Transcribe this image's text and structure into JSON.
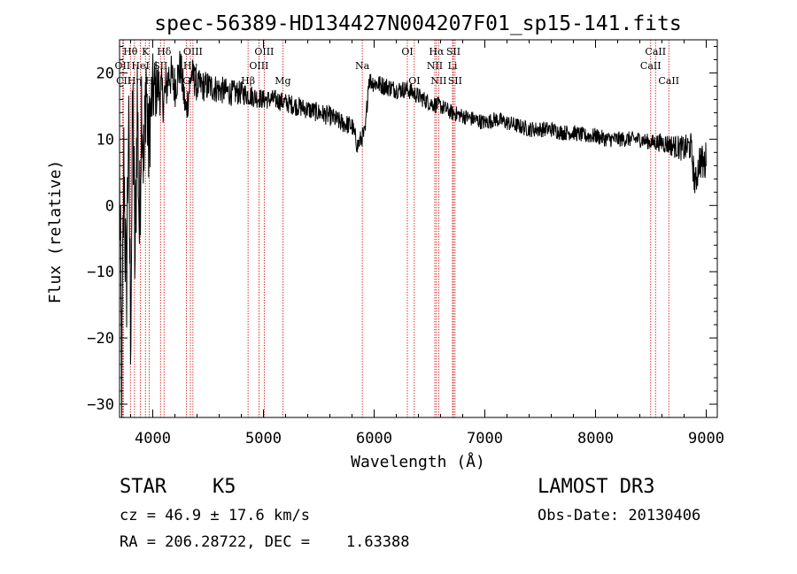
{
  "chart_data": {
    "type": "line",
    "title": "spec-56389-HD134427N004207F01_sp15-141.fits",
    "xlabel": "Wavelength (Å)",
    "ylabel": "Flux (relative)",
    "xlim": [
      3700,
      9100
    ],
    "ylim": [
      -32,
      25
    ],
    "x_ticks": [
      4000,
      5000,
      6000,
      7000,
      8000,
      9000
    ],
    "x_tick_labels": [
      "4000",
      "5000",
      "6000",
      "7000",
      "8000",
      "9000"
    ],
    "y_ticks": [
      -30,
      -20,
      -10,
      0,
      10,
      20
    ],
    "y_tick_labels": [
      "−30",
      "−20",
      "−10",
      "0",
      "10",
      "20"
    ],
    "grid": false,
    "line_color": "#000000",
    "marker_color": "#cc0000",
    "spectrum_anchors": [
      [
        3700,
        5
      ],
      [
        3720,
        -30
      ],
      [
        3740,
        8
      ],
      [
        3760,
        -15
      ],
      [
        3780,
        12
      ],
      [
        3800,
        -18
      ],
      [
        3820,
        15
      ],
      [
        3840,
        -10
      ],
      [
        3860,
        17
      ],
      [
        3880,
        -5
      ],
      [
        3900,
        18
      ],
      [
        3920,
        5
      ],
      [
        3940,
        20
      ],
      [
        3960,
        8
      ],
      [
        3980,
        14
      ],
      [
        4000,
        17
      ],
      [
        4050,
        18
      ],
      [
        4100,
        16
      ],
      [
        4150,
        20
      ],
      [
        4200,
        18
      ],
      [
        4250,
        21
      ],
      [
        4300,
        14
      ],
      [
        4350,
        20
      ],
      [
        4400,
        18
      ],
      [
        4500,
        18
      ],
      [
        4600,
        17.5
      ],
      [
        4700,
        17
      ],
      [
        4800,
        17
      ],
      [
        4900,
        16.5
      ],
      [
        5000,
        16
      ],
      [
        5100,
        16
      ],
      [
        5200,
        15.5
      ],
      [
        5300,
        15
      ],
      [
        5400,
        14.5
      ],
      [
        5500,
        14
      ],
      [
        5600,
        13.5
      ],
      [
        5700,
        12.5
      ],
      [
        5800,
        12
      ],
      [
        5850,
        9
      ],
      [
        5880,
        10
      ],
      [
        5920,
        11
      ],
      [
        5950,
        19
      ],
      [
        6000,
        18.5
      ],
      [
        6100,
        18
      ],
      [
        6200,
        17.5
      ],
      [
        6300,
        17.5
      ],
      [
        6400,
        16.5
      ],
      [
        6500,
        15.5
      ],
      [
        6600,
        15
      ],
      [
        6700,
        14
      ],
      [
        6800,
        13.5
      ],
      [
        6900,
        13
      ],
      [
        7000,
        12.5
      ],
      [
        7100,
        13
      ],
      [
        7200,
        12.5
      ],
      [
        7300,
        12
      ],
      [
        7400,
        11.5
      ],
      [
        7500,
        11.5
      ],
      [
        7600,
        11.5
      ],
      [
        7700,
        11
      ],
      [
        7800,
        11
      ],
      [
        7900,
        10.5
      ],
      [
        8000,
        10.5
      ],
      [
        8100,
        10
      ],
      [
        8200,
        10
      ],
      [
        8300,
        10
      ],
      [
        8400,
        10
      ],
      [
        8500,
        9.5
      ],
      [
        8600,
        9.5
      ],
      [
        8700,
        9
      ],
      [
        8800,
        8.5
      ],
      [
        8860,
        9
      ],
      [
        8900,
        3
      ],
      [
        8940,
        7
      ],
      [
        8980,
        6
      ],
      [
        9000,
        7
      ]
    ],
    "noise_profile": [
      [
        3700,
        12
      ],
      [
        3900,
        10
      ],
      [
        4050,
        4
      ],
      [
        4400,
        2.5
      ],
      [
        5000,
        1.5
      ],
      [
        6000,
        1.5
      ],
      [
        6700,
        1.2
      ],
      [
        7500,
        1.2
      ],
      [
        8500,
        1.2
      ],
      [
        8800,
        2
      ],
      [
        9000,
        3
      ]
    ],
    "spectral_lines": [
      {
        "label": "Hθ",
        "wavelength": 3798,
        "row": 0
      },
      {
        "label": "OII",
        "wavelength": 3727,
        "row": 1
      },
      {
        "label": "CII",
        "wavelength": 3737,
        "row": 2
      },
      {
        "label": "Hη",
        "wavelength": 3835,
        "row": 2
      },
      {
        "label": "K",
        "wavelength": 3934,
        "row": 0
      },
      {
        "label": "HeI",
        "wavelength": 3889,
        "row": 1
      },
      {
        "label": "H",
        "wavelength": 3969,
        "row": 2
      },
      {
        "label": "SII",
        "wavelength": 4070,
        "row": 1
      },
      {
        "label": "Hδ",
        "wavelength": 4102,
        "row": 0
      },
      {
        "label": "G",
        "wavelength": 4305,
        "row": 2
      },
      {
        "label": "OIII",
        "wavelength": 4363,
        "row": 0
      },
      {
        "label": "Hγ",
        "wavelength": 4340,
        "row": 1
      },
      {
        "label": "Hβ",
        "wavelength": 4861,
        "row": 2
      },
      {
        "label": "OIII",
        "wavelength": 4959,
        "row": 1
      },
      {
        "label": "OIII",
        "wavelength": 5007,
        "row": 0
      },
      {
        "label": "Mg",
        "wavelength": 5175,
        "row": 2
      },
      {
        "label": "Na",
        "wavelength": 5893,
        "row": 1
      },
      {
        "label": "OI",
        "wavelength": 6300,
        "row": 0
      },
      {
        "label": "OI",
        "wavelength": 6363,
        "row": 2
      },
      {
        "label": "Hα",
        "wavelength": 6563,
        "row": 0
      },
      {
        "label": "NII",
        "wavelength": 6548,
        "row": 1
      },
      {
        "label": "NII",
        "wavelength": 6583,
        "row": 2
      },
      {
        "label": "SII",
        "wavelength": 6716,
        "row": 0
      },
      {
        "label": "Li",
        "wavelength": 6708,
        "row": 1
      },
      {
        "label": "SII",
        "wavelength": 6731,
        "row": 2
      },
      {
        "label": "CaII",
        "wavelength": 8542,
        "row": 0
      },
      {
        "label": "CaII",
        "wavelength": 8498,
        "row": 1
      },
      {
        "label": "CaII",
        "wavelength": 8662,
        "row": 2
      }
    ]
  },
  "info": {
    "object_class": "STAR",
    "subclass": "K5",
    "redshift_line": "cz = 46.9 ± 17.6 km/s",
    "coords_line": "RA = 206.28722, DEC =    1.63388",
    "survey": "LAMOST DR3",
    "obs_date": "Obs-Date: 20130406"
  }
}
